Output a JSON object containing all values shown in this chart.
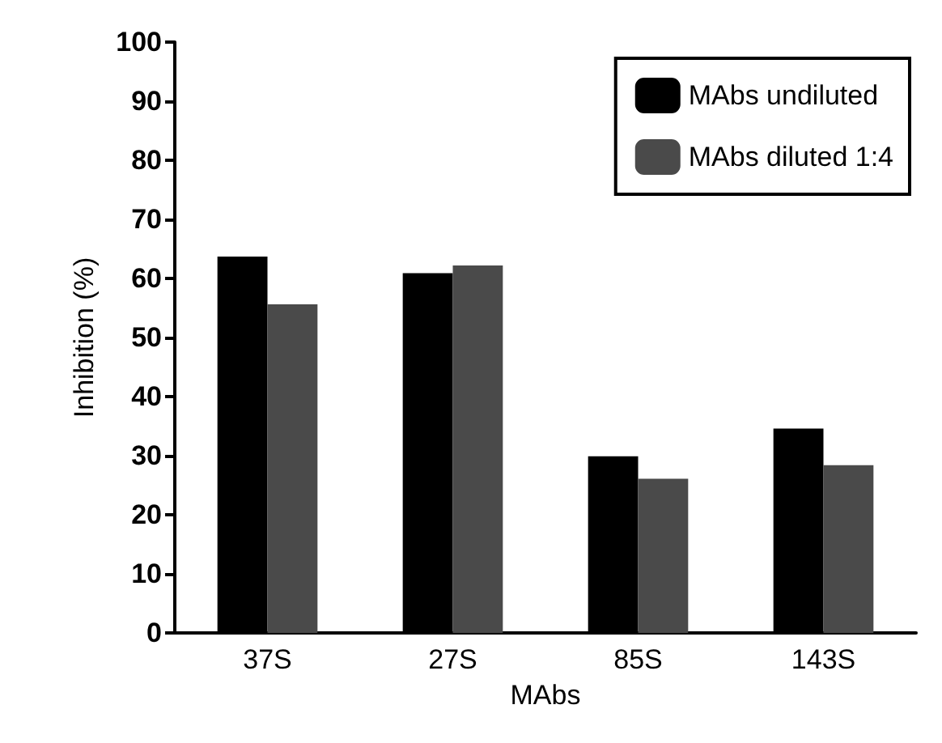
{
  "chart_data": {
    "type": "bar",
    "xlabel": "MAbs",
    "ylabel": "Inhibition (%)",
    "categories": [
      "37S",
      "27S",
      "85S",
      "143S"
    ],
    "series": [
      {
        "name": "MAbs undiluted",
        "color": "#000000",
        "values": [
          63.7,
          60.9,
          29.9,
          34.6
        ]
      },
      {
        "name": "MAbs diluted 1:4",
        "color": "#4a4a4a",
        "values": [
          55.6,
          62.2,
          26.1,
          28.4
        ]
      }
    ],
    "ylim": [
      0,
      100
    ],
    "yticks": [
      0,
      10,
      20,
      30,
      40,
      50,
      60,
      70,
      80,
      90,
      100
    ],
    "grid": false,
    "legend": "top right"
  }
}
